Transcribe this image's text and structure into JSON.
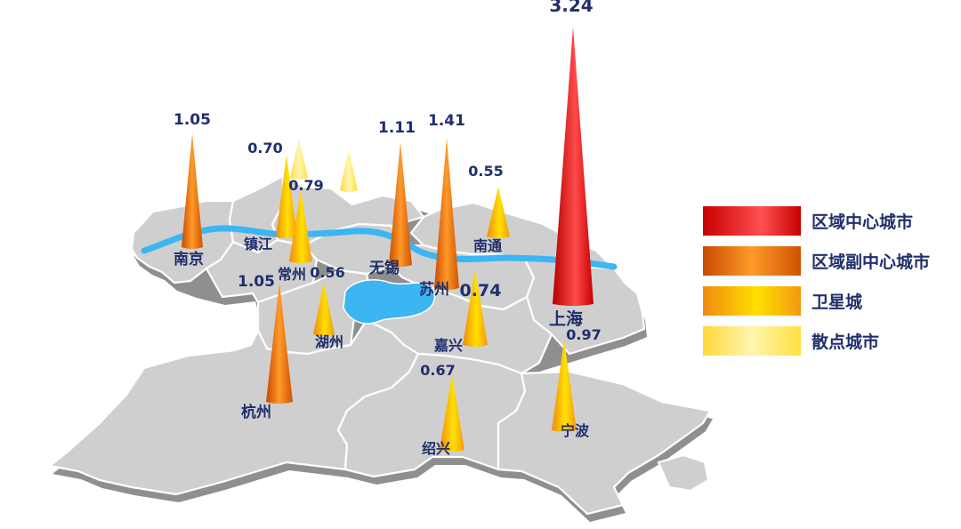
{
  "colors": {
    "center": "#e01010",
    "sub_center": "#e8700c",
    "satellite": "#f5a812",
    "scatter": "#ffe24a",
    "map_fill": "#cccccc",
    "water": "#3bb6f2",
    "label": "#1f2f6b"
  },
  "legend": {
    "items": [
      {
        "key": "center",
        "label": "区域中心城市"
      },
      {
        "key": "sub_center",
        "label": "区域副中心城市"
      },
      {
        "key": "satellite",
        "label": "卫星城"
      },
      {
        "key": "scatter",
        "label": "散点城市"
      }
    ]
  },
  "cities": [
    {
      "id": "shanghai",
      "name": "上海",
      "value": "3.24",
      "tier": "center"
    },
    {
      "id": "nanjing",
      "name": "南京",
      "value": "1.05",
      "tier": "sub_center"
    },
    {
      "id": "wuxi",
      "name": "无锡",
      "value": "1.11",
      "tier": "sub_center"
    },
    {
      "id": "suzhou",
      "name": "苏州",
      "value": "1.41",
      "tier": "sub_center"
    },
    {
      "id": "hangzhou",
      "name": "杭州",
      "value": "1.05",
      "tier": "sub_center"
    },
    {
      "id": "zhenjiang",
      "name": "镇江",
      "value": "0.70",
      "tier": "satellite"
    },
    {
      "id": "changzhou",
      "name": "常州",
      "value": "0.79",
      "tier": "satellite"
    },
    {
      "id": "nantong",
      "name": "南通",
      "value": "0.55",
      "tier": "satellite"
    },
    {
      "id": "huzhou",
      "name": "湖州",
      "value": "0.56",
      "tier": "satellite"
    },
    {
      "id": "jiaxing",
      "name": "嘉兴",
      "value": "0.74",
      "tier": "satellite"
    },
    {
      "id": "shaoxing",
      "name": "绍兴",
      "value": "0.67",
      "tier": "satellite"
    },
    {
      "id": "ningbo",
      "name": "宁波",
      "value": "0.97",
      "tier": "satellite"
    },
    {
      "id": "scatter_a",
      "name": "",
      "value": "",
      "tier": "scatter"
    },
    {
      "id": "scatter_b",
      "name": "",
      "value": "",
      "tier": "scatter"
    }
  ]
}
